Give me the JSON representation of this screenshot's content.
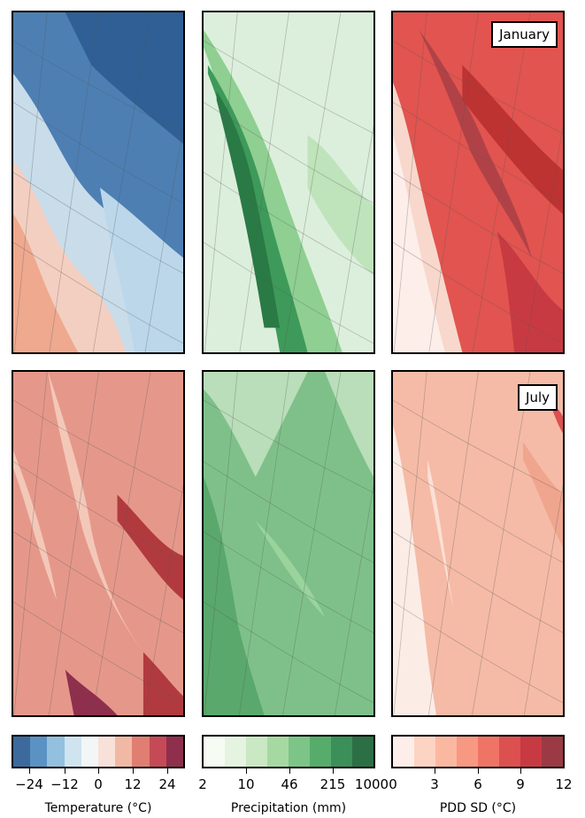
{
  "rows": [
    {
      "month": "January",
      "temperature_colors": [
        "#2f5f95",
        "#bcd7ea"
      ],
      "precipitation_colors": [
        "#2a7a45",
        "#dcefdc"
      ],
      "pdd_sd_colors": [
        "#b42a2a",
        "#f8d8cc"
      ]
    },
    {
      "month": "July",
      "temperature_colors": [
        "#b13a3f",
        "#f3c8b8"
      ],
      "precipitation_colors": [
        "#5aa86c",
        "#b9deb9"
      ],
      "pdd_sd_colors": [
        "#f0a58e",
        "#fcece6"
      ]
    }
  ],
  "colorbars": {
    "temperature": {
      "label": "Temperature (°C)",
      "ticks": [
        "−24",
        "−12",
        "0",
        "12",
        "24"
      ],
      "colors": [
        "#3c6a9c",
        "#5a92c4",
        "#93c0de",
        "#cfe4ef",
        "#f2f6f7",
        "#f8e1d9",
        "#f1b9a4",
        "#e07e72",
        "#c54a56",
        "#8f2f4e"
      ]
    },
    "precipitation": {
      "label": "Precipitation (mm)",
      "ticks": [
        "2",
        "10",
        "46",
        "215",
        "1000"
      ],
      "colors": [
        "#f6fbf4",
        "#e4f4e0",
        "#c9e8c3",
        "#a6d9a1",
        "#7dc587",
        "#55ac6b",
        "#3b8f58",
        "#2c6f45"
      ]
    },
    "pdd_sd": {
      "label": "PDD SD (°C)",
      "ticks": [
        "0",
        "3",
        "6",
        "9",
        "12"
      ],
      "colors": [
        "#fdeeea",
        "#fdd3c4",
        "#fbb8a1",
        "#f79882",
        "#f07466",
        "#dd5050",
        "#c83a42",
        "#9b3a45"
      ]
    }
  }
}
